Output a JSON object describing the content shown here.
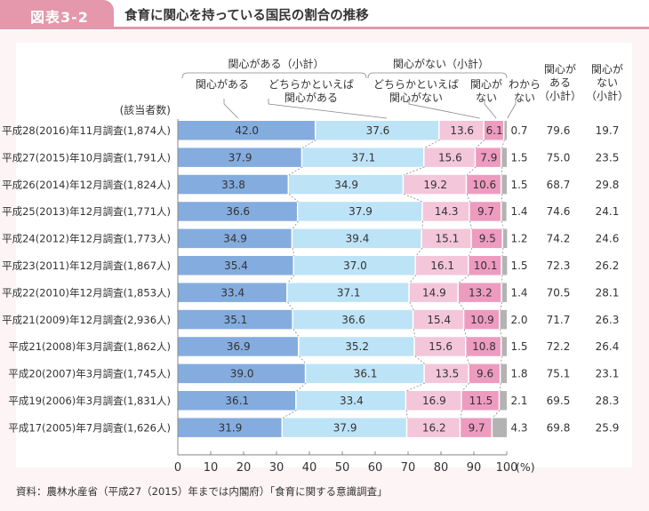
{
  "header": {
    "figure_label": "図表3-2",
    "title": "食育に関心を持っている国民の割合の推移"
  },
  "source": "資料：農林水産省（平成27（2015）年までは内閣府）「食育に関する意識調査」",
  "colors": {
    "interested": "#84ACDF",
    "somewhat_interested": "#BDE3F7",
    "somewhat_not_interested": "#F4C6DA",
    "not_interested": "#EE9BC0",
    "dont_know": "#B3B3B3",
    "accent": "#E597AB"
  },
  "chart_data": {
    "type": "bar",
    "orientation": "horizontal",
    "stacked": true,
    "title": "食育に関心を持っている国民の割合の推移",
    "xlabel": "(%)",
    "ylabel": "(該当者数)",
    "xlim": [
      0,
      100
    ],
    "xticks": [
      0,
      10,
      20,
      30,
      40,
      50,
      60,
      70,
      80,
      90,
      100
    ],
    "xtick_suffix": "(%)",
    "group_headers": [
      {
        "label": "関心がある（小計）",
        "covers": [
          "関心がある",
          "どちらかといえば関心がある"
        ]
      },
      {
        "label": "関心がない（小計）",
        "covers": [
          "どちらかといえば関心がない",
          "関心がない"
        ]
      }
    ],
    "categories": [
      "平成28(2016)年11月調査(1,874人)",
      "平成27(2015)年10月調査(1,791人)",
      "平成26(2014)年12月調査(1,824人)",
      "平成25(2013)年12月調査(1,771人)",
      "平成24(2012)年12月調査(1,773人)",
      "平成23(2011)年12月調査(1,867人)",
      "平成22(2010)年12月調査(1,853人)",
      "平成21(2009)年12月調査(2,936人)",
      "平成21(2008)年3月調査(1,862人)",
      "平成20(2007)年3月調査(1,745人)",
      "平成19(2006)年3月調査(1,831人)",
      "平成17(2005)年7月調査(1,626人)"
    ],
    "series": [
      {
        "name": "関心がある",
        "header": [
          "関心がある"
        ],
        "values": [
          42.0,
          37.9,
          33.8,
          36.6,
          34.9,
          35.4,
          33.4,
          35.1,
          36.9,
          39.0,
          36.1,
          31.9
        ]
      },
      {
        "name": "どちらかといえば関心がある",
        "header": [
          "どちらかといえば",
          "関心がある"
        ],
        "values": [
          37.6,
          37.1,
          34.9,
          37.9,
          39.4,
          37.0,
          37.1,
          36.6,
          35.2,
          36.1,
          33.4,
          37.9
        ]
      },
      {
        "name": "どちらかといえば関心がない",
        "header": [
          "どちらかといえば",
          "関心がない"
        ],
        "values": [
          13.6,
          15.6,
          19.2,
          14.3,
          15.1,
          16.1,
          14.9,
          15.4,
          15.6,
          13.5,
          16.9,
          16.2
        ]
      },
      {
        "name": "関心がない",
        "header": [
          "関心が",
          "ない"
        ],
        "values": [
          6.1,
          7.9,
          10.6,
          9.7,
          9.5,
          10.1,
          13.2,
          10.9,
          10.8,
          9.6,
          11.5,
          9.7
        ]
      },
      {
        "name": "わからない",
        "header": [
          "わから",
          "ない"
        ],
        "values": [
          0.7,
          1.5,
          1.5,
          1.4,
          1.2,
          1.5,
          1.4,
          2.0,
          1.5,
          1.8,
          2.1,
          4.3
        ]
      }
    ],
    "subtotals": [
      {
        "name": "関心がある（小計）",
        "header": [
          "関心が",
          "ある",
          "（小計）"
        ],
        "values": [
          79.6,
          75.0,
          68.7,
          74.6,
          74.2,
          72.3,
          70.5,
          71.7,
          72.2,
          75.1,
          69.5,
          69.8
        ]
      },
      {
        "name": "関心がない（小計）",
        "header": [
          "関心が",
          "ない",
          "（小計）"
        ],
        "values": [
          19.7,
          23.5,
          29.8,
          24.1,
          24.6,
          26.2,
          28.1,
          26.3,
          26.4,
          23.1,
          28.3,
          25.9
        ]
      }
    ],
    "legend": "top (column headers)",
    "grid": false
  }
}
